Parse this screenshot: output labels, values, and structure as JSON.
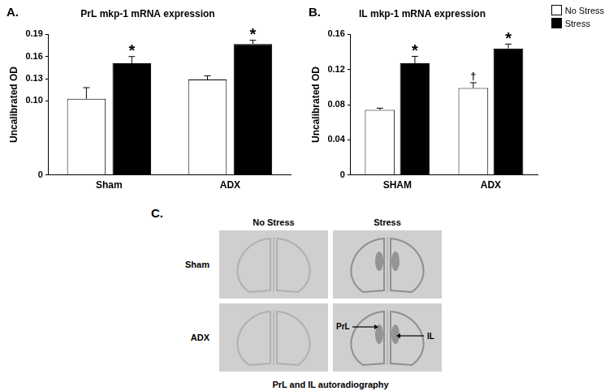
{
  "chart_data": [
    {
      "type": "bar",
      "panel_label": "A.",
      "title": "PrL mkp-1 mRNA expression",
      "y_label": "Uncalibrated OD",
      "categories": [
        "Sham",
        "ADX"
      ],
      "series": [
        {
          "name": "No Stress",
          "color": "#ffffff",
          "values": [
            0.103,
            0.129
          ],
          "errors": [
            0.015,
            0.005
          ]
        },
        {
          "name": "Stress",
          "color": "#000000",
          "values": [
            0.151,
            0.177
          ],
          "errors": [
            0.009,
            0.005
          ]
        }
      ],
      "annotations": [
        {
          "series": "Stress",
          "category": "Sham",
          "text": "*"
        },
        {
          "series": "Stress",
          "category": "ADX",
          "text": "*"
        }
      ],
      "ylim": [
        0,
        0.19
      ],
      "yticks": [
        0,
        {
          "value": 0.1,
          "label": "0.10"
        },
        0.13,
        0.16,
        0.19
      ],
      "grid": false
    },
    {
      "type": "bar",
      "panel_label": "B.",
      "title": "IL mkp-1 mRNA expression",
      "y_label": "Uncalibrated OD",
      "categories": [
        "SHAM",
        "ADX"
      ],
      "series": [
        {
          "name": "No Stress",
          "color": "#ffffff",
          "values": [
            0.074,
            0.099
          ],
          "errors": [
            0.002,
            0.006
          ]
        },
        {
          "name": "Stress",
          "color": "#000000",
          "values": [
            0.127,
            0.144
          ],
          "errors": [
            0.008,
            0.005
          ]
        }
      ],
      "annotations": [
        {
          "series": "Stress",
          "category": "SHAM",
          "text": "*"
        },
        {
          "series": "Stress",
          "category": "ADX",
          "text": "*"
        },
        {
          "series": "No Stress",
          "category": "ADX",
          "text": "†"
        }
      ],
      "ylim": [
        0,
        0.16
      ],
      "yticks": [
        0,
        0.04,
        0.08,
        0.12,
        0.16
      ],
      "grid": false,
      "legend": "top right"
    }
  ],
  "image_panel": {
    "panel_label": "C.",
    "columns": [
      "No Stress",
      "Stress"
    ],
    "rows": [
      "Sham",
      "ADX"
    ],
    "arrow_cell": {
      "row": "ADX",
      "column": "Stress",
      "labels": [
        "PrL",
        "IL"
      ]
    },
    "caption": "PrL and IL autoradiography"
  }
}
